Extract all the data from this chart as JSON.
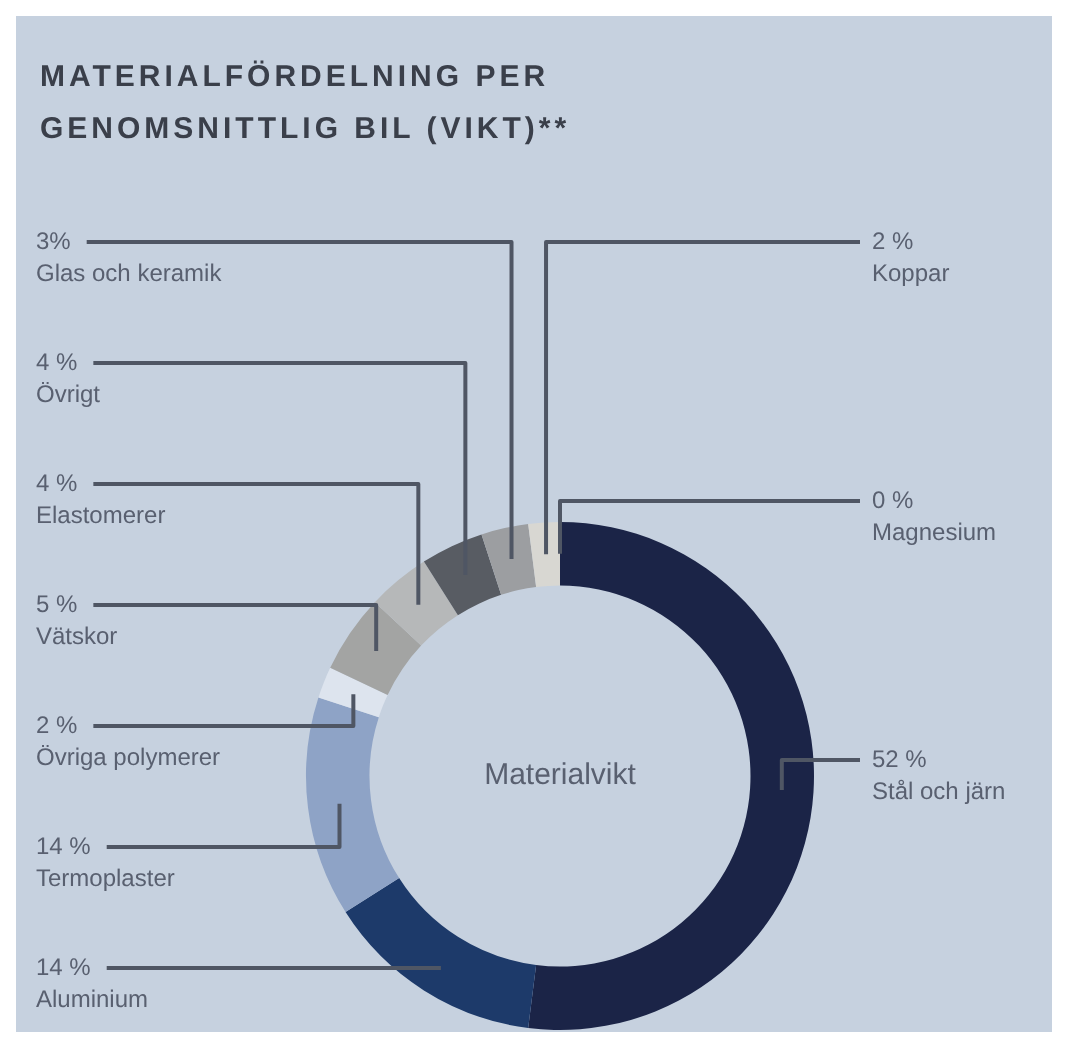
{
  "chart_data": {
    "type": "donut",
    "title": "MATERIALFÖRDELNING PER GENOMSNITTLIG BIL (VIKT)**",
    "categories": [
      "Magnesium",
      "Stål och järn",
      "Aluminium",
      "Termoplaster",
      "Övriga polymerer",
      "Vätskor",
      "Elastomerer",
      "Övrigt",
      "Glas och keramik",
      "Koppar"
    ],
    "values": [
      0,
      52,
      14,
      14,
      2,
      5,
      4,
      4,
      3,
      2
    ],
    "value_labels": [
      "0 %",
      "52 %",
      "14 %",
      "14 %",
      "2 %",
      "5 %",
      "4 %",
      "4 %",
      "3%",
      "2 %"
    ],
    "colors": [
      "#f2f2f0",
      "#1b2447",
      "#1d3a6a",
      "#8ea3c6",
      "#dde4ee",
      "#a3a4a3",
      "#b6b8b9",
      "#585c63",
      "#9c9ea1",
      "#d8d7d2"
    ],
    "annotations": [
      "Materialvikt"
    ],
    "legend": false
  }
}
